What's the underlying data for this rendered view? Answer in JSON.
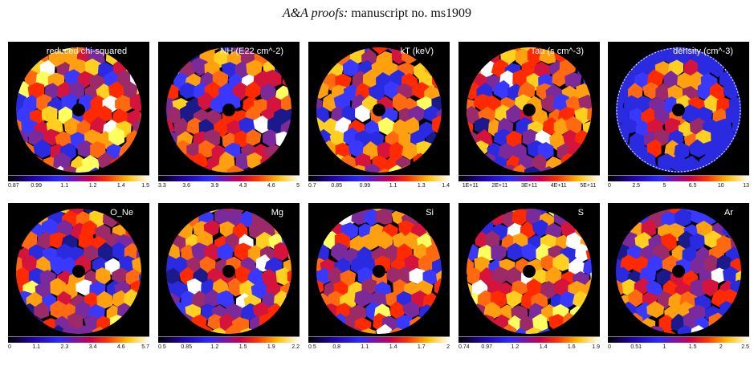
{
  "header": {
    "journal": "A&A proofs:",
    "manuscript": "manuscript no. ms1909"
  },
  "panels": [
    {
      "title": "reduced chi-squared",
      "ticks": [
        "0.87",
        "0.99",
        "1.1",
        "1.2",
        "1.4",
        "1.5"
      ],
      "seed": 11,
      "bias": 0.65
    },
    {
      "title": "NH (E22 cm^-2)",
      "ticks": [
        "3.3",
        "3.6",
        "3.9",
        "4.3",
        "4.6",
        "5"
      ],
      "seed": 23,
      "bias": 0.35
    },
    {
      "title": "kT (keV)",
      "ticks": [
        "0.7",
        "0.85",
        "0.99",
        "1.1",
        "1.3",
        "1.4"
      ],
      "seed": 37,
      "bias": 0.5
    },
    {
      "title": "Tau (s cm^-3)",
      "ticks": [
        "1E+11",
        "2E+11",
        "3E+11",
        "4E+11",
        "5E+11"
      ],
      "seed": 41,
      "bias": 0.4
    },
    {
      "title": "density (cm^-3)",
      "ticks": [
        "0",
        "2.5",
        "5",
        "6.5",
        "10",
        "13"
      ],
      "seed": 53,
      "bias": 0.5,
      "ring": true
    },
    {
      "title": "O_Ne",
      "ticks": [
        "0",
        "1.1",
        "2.3",
        "3.4",
        "4.6",
        "5.7"
      ],
      "seed": 61,
      "bias": 0.3
    },
    {
      "title": "Mg",
      "ticks": [
        "0.5",
        "0.85",
        "1.2",
        "1.5",
        "1.9",
        "2.2"
      ],
      "seed": 73,
      "bias": 0.45
    },
    {
      "title": "Si",
      "ticks": [
        "0.5",
        "0.8",
        "1.1",
        "1.4",
        "1.7",
        "2"
      ],
      "seed": 83,
      "bias": 0.55
    },
    {
      "title": "S",
      "ticks": [
        "0.74",
        "0.97",
        "1.2",
        "1.4",
        "1.6",
        "1.9"
      ],
      "seed": 97,
      "bias": 0.55
    },
    {
      "title": "Ar",
      "ticks": [
        "0",
        "0.51",
        "1",
        "1.5",
        "2",
        "2.5"
      ],
      "seed": 101,
      "bias": 0.4
    }
  ],
  "colors": {
    "background": "#000000",
    "palette": [
      "#0a0a3c",
      "#1a1a8c",
      "#2a2ae0",
      "#3838ff",
      "#7a2a9a",
      "#9a2a6a",
      "#d4143c",
      "#ff2a00",
      "#ff6a10",
      "#ffa010",
      "#ffd020",
      "#ffff60",
      "#ffffff"
    ]
  }
}
